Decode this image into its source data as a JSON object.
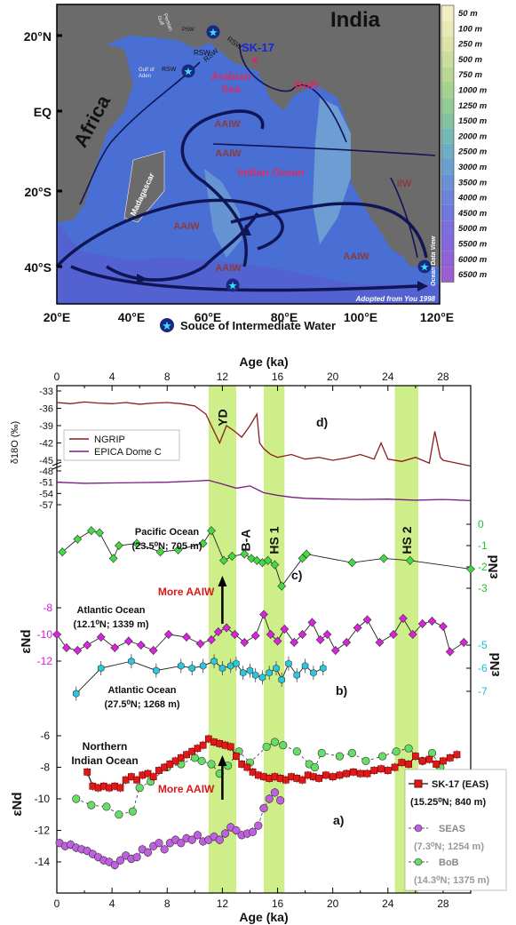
{
  "map": {
    "lat_labels": [
      "20°N",
      "EQ",
      "20°S",
      "40°S"
    ],
    "lon_labels": [
      "20°E",
      "40°E",
      "60°E",
      "80°E",
      "100°E",
      "120°E"
    ],
    "regions": {
      "india": "India",
      "africa": "Africa",
      "arabian_sea": "Arabian\nSea",
      "bob": "BoB",
      "indian_ocean": "Indian Ocean",
      "madagascar": "Madagascar"
    },
    "site_label": "SK-17",
    "water_masses": {
      "aaiw": "AAIW",
      "rsw": "RSW",
      "psw": "PSW",
      "iiw": "IIW",
      "gulf_of_aden": "Gulf of\nAden",
      "persian_gulf": "Persian\nGulf"
    },
    "credit": "Adopted from You 1998",
    "odv_tag": "Ocean Data View",
    "depth_scale": [
      "50 m",
      "100 m",
      "250 m",
      "500 m",
      "750 m",
      "1000 m",
      "1250 m",
      "1500 m",
      "2000 m",
      "2500 m",
      "3000 m",
      "3500 m",
      "4000 m",
      "4500 m",
      "5000 m",
      "5500 m",
      "6000 m",
      "6500 m"
    ],
    "depth_colors": [
      "#f2eec2",
      "#e9e9b6",
      "#dde3a6",
      "#cadd9a",
      "#b7d792",
      "#a4d290",
      "#93cb94",
      "#82c3a2",
      "#75b8b4",
      "#6fadc3",
      "#6a9fcf",
      "#6a91d6",
      "#6c85da",
      "#7178dc",
      "#7a6fdc",
      "#8467da",
      "#8f62d6",
      "#9b5fd1"
    ],
    "legend_source": "Souce of Intermediate Water"
  },
  "chart_data": {
    "type": "line",
    "x_axis": {
      "label": "Age (ka)",
      "range": [
        0,
        30
      ],
      "ticks": [
        "0",
        "4",
        "8",
        "12",
        "16",
        "20",
        "24",
        "28"
      ]
    },
    "shaded_events": [
      {
        "label": "YD",
        "from": 11.0,
        "to": 13.0
      },
      {
        "label": "HS 1",
        "from": 15.0,
        "to": 16.5
      },
      {
        "label": "HS 2",
        "from": 24.5,
        "to": 26.2
      }
    ],
    "event_labels": {
      "ba": "B-A"
    },
    "panel_d": {
      "panel_label": "d)",
      "ylabel": "δ18O (‰)",
      "ticks": [
        "-33",
        "-36",
        "-39",
        "-42",
        "-45",
        "-48",
        "-51",
        "-54",
        "-57"
      ],
      "series": [
        {
          "name": "NGRIP",
          "color": "#8b1a1a",
          "x": [
            0,
            1,
            2,
            3,
            4,
            5,
            6,
            7,
            8,
            9,
            10,
            10.8,
            11.2,
            11.8,
            12.3,
            12.9,
            13.4,
            14.0,
            14.5,
            14.7,
            15.0,
            15.5,
            16,
            17,
            18,
            19,
            20,
            21,
            22,
            23,
            23.5,
            24,
            25,
            26,
            27,
            27.4,
            27.8,
            28,
            29,
            30
          ],
          "y": [
            -35,
            -35.2,
            -34.9,
            -35.1,
            -35.2,
            -35.0,
            -35.3,
            -35.1,
            -35.0,
            -35.2,
            -35.6,
            -37,
            -39,
            -42,
            -39,
            -40,
            -41,
            -39,
            -37,
            -42,
            -43,
            -44,
            -44.5,
            -44,
            -44.8,
            -44.5,
            -45,
            -44.6,
            -44,
            -44.8,
            -42,
            -44.8,
            -45.2,
            -44.5,
            -45.5,
            -40,
            -44.5,
            -45,
            -45.5,
            -46
          ]
        },
        {
          "name": "EPICA Dome C",
          "color": "#7b1a80",
          "x": [
            0,
            2,
            4,
            6,
            8,
            10,
            11,
            12,
            13,
            14,
            15,
            16,
            17,
            18,
            20,
            22,
            24,
            26,
            28,
            30
          ],
          "y": [
            -51,
            -51.3,
            -51.2,
            -51.1,
            -51.0,
            -50.7,
            -50.5,
            -51.5,
            -52.6,
            -52.0,
            -53.8,
            -54.5,
            -55.0,
            -55.3,
            -55.5,
            -55.6,
            -55.5,
            -55.8,
            -55.6,
            -55.9
          ]
        }
      ]
    },
    "panel_c": {
      "panel_label": "c)",
      "ylabel": "εNd",
      "ticks": [
        "0",
        "-1",
        "-2",
        "-3"
      ],
      "site_label": "Pacific Ocean\n(23.5⁰N; 705 m)",
      "series": [
        {
          "name": "Pacific Ocean (23.5°N; 705 m)",
          "color": "#3fdc3f",
          "x": [
            0.4,
            1.5,
            2.5,
            3.1,
            4.1,
            4.5,
            5.8,
            7.5,
            8.8,
            10.6,
            11.2,
            12.1,
            12.7,
            13.6,
            14.1,
            14.5,
            14.9,
            15.3,
            15.8,
            16.3,
            17.8,
            18.1,
            21.4,
            23.7,
            25.6,
            30
          ],
          "y": [
            -1.3,
            -0.7,
            -0.3,
            -0.4,
            -1.6,
            -1.0,
            -0.9,
            -1.3,
            -1.2,
            -0.9,
            -0.3,
            -1.7,
            -1.5,
            -1.4,
            -1.6,
            -1.7,
            -1.8,
            -1.7,
            -1.9,
            -2.9,
            -1.6,
            -1.4,
            -1.8,
            -1.6,
            -1.7,
            -2.1
          ]
        }
      ]
    },
    "panel_b": {
      "panel_label": "b)",
      "ylabel_left": "εNd",
      "ylabel_right": "εNd",
      "left_ticks": [
        "-8",
        "-10",
        "-12"
      ],
      "right_ticks": [
        "-5",
        "-6",
        "-7"
      ],
      "site_label_atl1": "Atlantic Ocean\n(12.1⁰N; 1339 m)",
      "site_label_atl2": "Atlantic Ocean\n(27.5⁰N; 1268 m)",
      "series": [
        {
          "name": "Atlantic Ocean (12.1°N; 1339 m)",
          "color": "#e020e0",
          "x": [
            0,
            0.7,
            1.5,
            2.2,
            3.2,
            4.2,
            5.2,
            6.1,
            7.0,
            8.1,
            9.4,
            10.4,
            11.2,
            11.7,
            12.3,
            12.9,
            13.6,
            14.4,
            15.0,
            15.5,
            16.0,
            16.5,
            17.2,
            17.8,
            18.5,
            19.1,
            19.6,
            20.2,
            21.0,
            21.8,
            22.5,
            23.4,
            24.4,
            25.1,
            25.8,
            26.5,
            27.2,
            28.0,
            28.5,
            29.5
          ],
          "y": [
            -10.0,
            -11.0,
            -11.2,
            -10.8,
            -10.2,
            -11.0,
            -10.5,
            -10.8,
            -11.2,
            -10.0,
            -10.2,
            -10.7,
            -10.4,
            -9.8,
            -9.5,
            -10.0,
            -10.6,
            -10.1,
            -8.5,
            -10.0,
            -10.5,
            -9.6,
            -10.6,
            -10.0,
            -9.1,
            -10.4,
            -10.0,
            -11.2,
            -10.6,
            -9.5,
            -8.9,
            -10.6,
            -10.0,
            -8.8,
            -10.0,
            -9.2,
            -9.0,
            -9.4,
            -11.3,
            -10.6
          ]
        },
        {
          "name": "Atlantic Ocean (27.5°N; 1268 m)",
          "color": "#28c8e0",
          "x": [
            1.4,
            3.2,
            5.4,
            7.2,
            9.0,
            9.8,
            10.6,
            11.4,
            12.0,
            12.6,
            13.0,
            13.5,
            14.0,
            14.4,
            14.9,
            15.4,
            15.9,
            16.3,
            16.8,
            17.4,
            18.0,
            18.6,
            19.3
          ],
          "y": [
            -7.1,
            -6.0,
            -5.7,
            -6.1,
            -5.9,
            -6.0,
            -5.9,
            -5.7,
            -6.0,
            -5.9,
            -5.8,
            -6.2,
            -6.1,
            -6.3,
            -6.4,
            -6.2,
            -6.0,
            -6.5,
            -5.8,
            -6.3,
            -5.9,
            -6.2,
            -6.0
          ]
        }
      ]
    },
    "panel_a": {
      "panel_label": "a)",
      "ylabel": "εNd",
      "ticks": [
        "-6",
        "-8",
        "-10",
        "-12",
        "-14"
      ],
      "region_label": "Northern\nIndian Ocean",
      "series": [
        {
          "name": "SK-17 (EAS)\n(15.25⁰N; 840 m)",
          "color": "#e01818",
          "x": [
            2.2,
            2.6,
            3.0,
            3.4,
            3.8,
            4.2,
            4.6,
            5.0,
            5.4,
            5.8,
            6.2,
            6.6,
            7.0,
            7.4,
            7.8,
            8.2,
            8.6,
            9.0,
            9.4,
            9.8,
            10.2,
            10.6,
            11.0,
            11.4,
            11.8,
            12.2,
            12.6,
            13.0,
            13.4,
            13.8,
            14.2,
            14.6,
            15.0,
            15.4,
            15.8,
            16.2,
            16.6,
            17.0,
            17.4,
            17.8,
            18.2,
            18.6,
            19.0,
            19.5,
            20.0,
            20.5,
            21.0,
            21.5,
            22.0,
            22.5,
            23.0,
            23.5,
            24.0,
            24.5,
            25.0,
            25.5,
            26.0,
            26.5,
            27.0,
            27.5,
            28.0,
            28.5,
            29.0
          ],
          "y": [
            -8.3,
            -9.2,
            -9.3,
            -9.2,
            -9.3,
            -9.2,
            -9.3,
            -8.8,
            -8.6,
            -8.8,
            -8.5,
            -8.4,
            -8.6,
            -8.2,
            -8.0,
            -7.8,
            -7.6,
            -7.4,
            -7.2,
            -7.0,
            -6.8,
            -6.6,
            -6.2,
            -6.4,
            -6.5,
            -6.6,
            -6.7,
            -7.3,
            -7.8,
            -8.0,
            -8.3,
            -8.5,
            -8.6,
            -8.7,
            -8.6,
            -8.7,
            -8.8,
            -8.6,
            -8.7,
            -8.8,
            -8.5,
            -8.6,
            -8.7,
            -8.5,
            -8.6,
            -8.5,
            -8.4,
            -8.3,
            -8.4,
            -8.4,
            -8.2,
            -8.1,
            -8.2,
            -8.0,
            -7.7,
            -7.8,
            -7.3,
            -7.6,
            -7.5,
            -7.8,
            -7.6,
            -7.4,
            -7.2
          ]
        },
        {
          "name": "SEAS\n(7.3⁰N; 1254 m)",
          "color": "#c060e0",
          "x": [
            0.2,
            0.6,
            1.0,
            1.4,
            1.8,
            2.2,
            2.6,
            3.0,
            3.4,
            3.8,
            4.2,
            4.6,
            5.0,
            5.4,
            5.8,
            6.2,
            6.6,
            7.0,
            7.4,
            7.8,
            8.2,
            8.6,
            9.0,
            9.4,
            9.8,
            10.2,
            10.6,
            11.0,
            11.4,
            11.8,
            12.2,
            12.6,
            13.0,
            13.4,
            13.8,
            14.2,
            14.6,
            15.0,
            15.4,
            15.8,
            16.2
          ],
          "y": [
            -12.8,
            -13.0,
            -12.9,
            -13.1,
            -13.2,
            -13.3,
            -13.5,
            -13.7,
            -13.9,
            -14.0,
            -14.2,
            -13.9,
            -13.6,
            -13.8,
            -13.7,
            -13.2,
            -13.4,
            -13.0,
            -12.8,
            -13.2,
            -12.8,
            -12.6,
            -12.8,
            -12.5,
            -12.6,
            -12.3,
            -12.7,
            -12.6,
            -12.4,
            -12.6,
            -12.2,
            -11.8,
            -12.0,
            -12.3,
            -12.2,
            -12.1,
            -11.7,
            -10.6,
            -10.0,
            -9.6,
            -10.1
          ]
        },
        {
          "name": "BoB\n(14.3⁰N; 1375 m)",
          "color": "#66dd66",
          "x": [
            1.4,
            2.5,
            3.6,
            4.5,
            5.5,
            6.0,
            6.8,
            8.0,
            9.0,
            10.0,
            10.5,
            11.2,
            11.8,
            12.4,
            13.2,
            14.0,
            15.2,
            15.8,
            16.4,
            17.4,
            18.3,
            18.7,
            19.2,
            20.5,
            21.4,
            22.4,
            23.6,
            24.6,
            25.5,
            26.5,
            27.2,
            27.8
          ],
          "y": [
            -10.0,
            -10.4,
            -10.5,
            -11.0,
            -10.8,
            -9.3,
            -8.9,
            -8.0,
            -7.8,
            -7.4,
            -7.6,
            -7.8,
            -8.4,
            -7.9,
            -7.0,
            -7.7,
            -6.7,
            -6.4,
            -6.6,
            -7.0,
            -7.8,
            -8.0,
            -7.1,
            -7.3,
            -7.1,
            -7.6,
            -7.3,
            -7.0,
            -6.8,
            -7.6,
            -7.1,
            -8.0
          ]
        }
      ]
    },
    "annotations": {
      "more_aaiw_top": "More AAIW",
      "more_aaiw_bottom": "More AAIW"
    }
  }
}
